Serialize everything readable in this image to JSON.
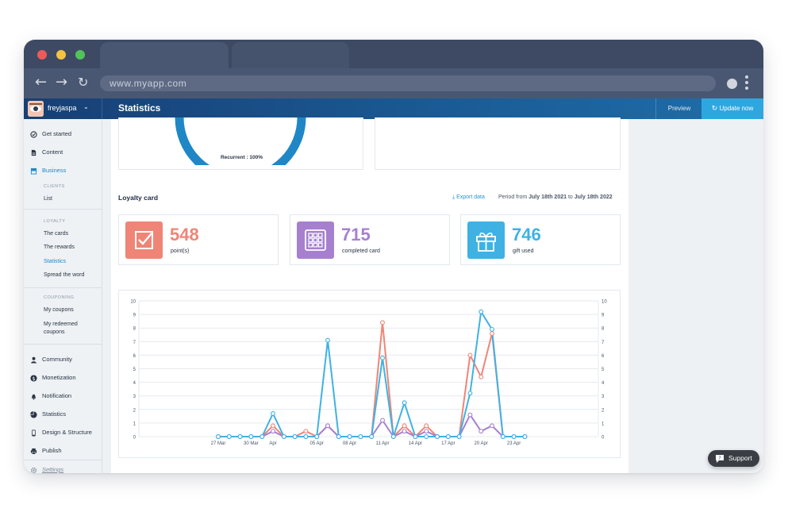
{
  "browser": {
    "url": "www.myapp.com",
    "nav_icons": [
      "back-arrow-icon",
      "forward-arrow-icon",
      "reload-icon"
    ],
    "colors": {
      "frame": "#3e4a63",
      "close": "#ed5a5a",
      "minimize": "#f3c341",
      "maximize": "#52c25a"
    }
  },
  "header": {
    "username": "freyjaspa",
    "title": "Statistics",
    "preview_label": "Preview",
    "update_label": "Update now"
  },
  "sidebar": {
    "get_started": "Get started",
    "content": "Content",
    "business": "Business",
    "clients_caption": "CLIENTS",
    "list": "List",
    "loyalty_caption": "LOYALTY",
    "the_cards": "The cards",
    "the_rewards": "The rewards",
    "statistics_sub": "Statistics",
    "spread": "Spread the word",
    "couponing_caption": "COUPONING",
    "my_coupons": "My coupons",
    "my_redeemed_1": "My redeemed",
    "my_redeemed_2": "coupons",
    "community": "Community",
    "monetization": "Monetization",
    "notification": "Notification",
    "statistics": "Statistics",
    "design": "Design & Structure",
    "publish": "Publish",
    "settings": "Settings"
  },
  "donut": {
    "label": "Recurrent : 100%"
  },
  "loyalty": {
    "title": "Loyalty card",
    "export_label": "Export data",
    "period_prefix": "Period from",
    "period_from": "July 18th 2021",
    "period_to_word": "to",
    "period_to": "July 18th 2022",
    "stats": [
      {
        "value": "548",
        "label": "point(s)",
        "color": "#ef8577",
        "icon": "checkbox-icon"
      },
      {
        "value": "715",
        "label": "completed card",
        "color": "#a680cf",
        "icon": "card-grid-icon"
      },
      {
        "value": "746",
        "label": "gift used",
        "color": "#3fb2e3",
        "icon": "gift-icon"
      }
    ]
  },
  "chart_data": {
    "type": "line",
    "x": [
      "27 Mar",
      "28 Mar",
      "29 Mar",
      "30 Mar",
      "31 Mar",
      "Apr",
      "02 Apr",
      "03 Apr",
      "04 Apr",
      "05 Apr",
      "06 Apr",
      "07 Apr",
      "08 Apr",
      "09 Apr",
      "10 Apr",
      "11 Apr",
      "12 Apr",
      "13 Apr",
      "14 Apr",
      "15 Apr",
      "16 Apr",
      "17 Apr",
      "18 Apr",
      "19 Apr",
      "20 Apr",
      "21 Apr",
      "22 Apr",
      "23 Apr",
      "24 Apr"
    ],
    "tick_labels": [
      "27 Mar",
      "30 Mar",
      "Apr",
      "05 Apr",
      "08 Apr",
      "11 Apr",
      "14 Apr",
      "17 Apr",
      "20 Apr",
      "23 Apr"
    ],
    "ylim": [
      0,
      10
    ],
    "yticks": [
      0,
      1,
      2,
      3,
      4,
      5,
      6,
      7,
      8,
      9,
      10
    ],
    "grid": true,
    "series": [
      {
        "color": "#ef8577",
        "values": [
          0,
          0,
          0,
          0,
          0,
          0.8,
          0,
          0,
          0.4,
          0,
          0.8,
          0,
          0,
          0,
          0,
          8.4,
          0,
          0.8,
          0,
          0.8,
          0,
          0,
          0,
          6,
          4.4,
          7.6,
          0,
          0,
          0
        ]
      },
      {
        "color": "#a680cf",
        "values": [
          0,
          0,
          0,
          0,
          0,
          0.4,
          0,
          0,
          0,
          0,
          0.8,
          0,
          0,
          0,
          0,
          1.2,
          0,
          0.4,
          0,
          0.4,
          0,
          0,
          0,
          1.6,
          0.4,
          0.8,
          0,
          0,
          0
        ]
      },
      {
        "color": "#3fb2e3",
        "values": [
          0,
          0,
          0,
          0,
          0,
          1.7,
          0,
          0,
          0,
          0,
          7.1,
          0,
          0,
          0,
          0,
          5.8,
          0,
          2.5,
          0,
          0,
          0,
          0,
          0,
          3.2,
          9.2,
          7.9,
          0,
          0,
          0
        ]
      }
    ]
  },
  "support": {
    "label": "Support"
  }
}
